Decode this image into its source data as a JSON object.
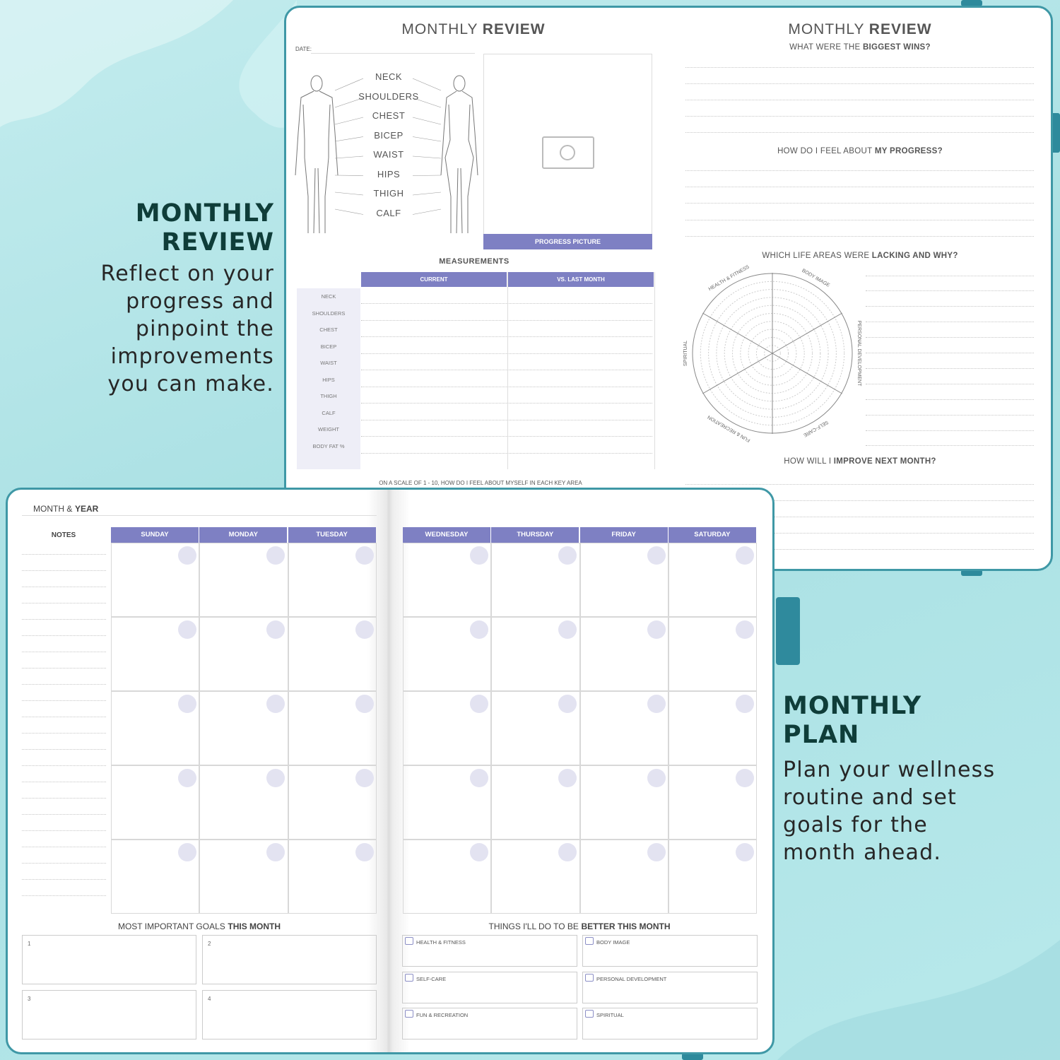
{
  "left_feature": {
    "title_lines": [
      "MONTHLY",
      "REVIEW"
    ],
    "body_lines": [
      "Reflect on your",
      "progress and",
      "pinpoint the",
      "improvements",
      "you can make."
    ]
  },
  "right_feature": {
    "title_lines": [
      "MONTHLY",
      "PLAN"
    ],
    "body_lines": [
      "Plan your wellness",
      "routine and set",
      "goals for the",
      "month ahead."
    ]
  },
  "review_left": {
    "title": {
      "light": "MONTHLY",
      "bold": "REVIEW"
    },
    "date_label": "DATE:",
    "body_points": [
      "NECK",
      "SHOULDERS",
      "CHEST",
      "BICEP",
      "WAIST",
      "HIPS",
      "THIGH",
      "CALF"
    ],
    "progress_picture": "PROGRESS PICTURE",
    "measurements": {
      "title": "MEASUREMENTS",
      "columns": [
        "CURRENT",
        "VS. LAST MONTH"
      ],
      "rows": [
        "NECK",
        "SHOULDERS",
        "CHEST",
        "BICEP",
        "WAIST",
        "HIPS",
        "THIGH",
        "CALF",
        "WEIGHT",
        "BODY FAT %"
      ]
    },
    "scale_note": "ON A SCALE OF 1 - 10, HOW DO I FEEL ABOUT MYSELF IN EACH KEY AREA"
  },
  "review_right": {
    "title": {
      "light": "MONTHLY",
      "bold": "REVIEW"
    },
    "questions": [
      {
        "light": "WHAT WERE THE",
        "bold": "BIGGEST WINS?"
      },
      {
        "light": "HOW DO I FEEL ABOUT",
        "bold": "MY PROGRESS?"
      },
      {
        "light": "WHICH LIFE AREAS WERE",
        "bold": "LACKING AND WHY?"
      },
      {
        "light": "HOW WILL I",
        "bold": "IMPROVE NEXT MONTH?"
      }
    ],
    "wheel_areas": [
      "BODY IMAGE",
      "PERSONAL DEVELOPMENT",
      "SELF-CARE",
      "FUN & RECREATION",
      "SPIRITUAL",
      "HEALTH & FITNESS"
    ]
  },
  "plan": {
    "header": {
      "light": "MONTH &",
      "bold": "YEAR"
    },
    "notes_label": "NOTES",
    "days": [
      "SUNDAY",
      "MONDAY",
      "TUESDAY",
      "WEDNESDAY",
      "THURSDAY",
      "FRIDAY",
      "SATURDAY"
    ],
    "goals_title": {
      "light": "MOST IMPORTANT GOALS",
      "bold": "THIS MONTH"
    },
    "goal_numbers": [
      "1",
      "2",
      "3",
      "4"
    ],
    "things_title": {
      "light": "THINGS I'LL DO TO BE",
      "bold": "BETTER THIS MONTH"
    },
    "areas": [
      "HEALTH & FITNESS",
      "BODY IMAGE",
      "SELF-CARE",
      "PERSONAL DEVELOPMENT",
      "FUN & RECREATION",
      "SPIRITUAL"
    ]
  }
}
